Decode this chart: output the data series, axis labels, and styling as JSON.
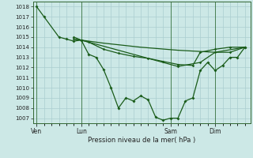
{
  "xlabel": "Pression niveau de la mer( hPa )",
  "ylim": [
    1006.5,
    1018.5
  ],
  "yticks": [
    1007,
    1008,
    1009,
    1010,
    1011,
    1012,
    1013,
    1014,
    1015,
    1016,
    1017,
    1018
  ],
  "xtick_labels": [
    "Ven",
    "Lun",
    "Sam",
    "Dim"
  ],
  "xtick_positions": [
    0,
    24,
    72,
    96
  ],
  "xlim": [
    -2,
    115
  ],
  "background_color": "#cce8e6",
  "grid_color": "#aaced0",
  "line_color": "#1a5c1a",
  "lines": [
    [
      0,
      1018,
      4,
      1017,
      12,
      1015,
      16,
      1014.8,
      20,
      1014.6,
      24,
      1014.7,
      28,
      1013.3,
      32,
      1013,
      36,
      1011.8,
      40,
      1010,
      44,
      1008,
      48,
      1009,
      52,
      1008.7,
      56,
      1009.2,
      60,
      1008.8,
      64,
      1007.1,
      68,
      1006.8,
      72,
      1007,
      76,
      1007,
      80,
      1008.7,
      84,
      1009,
      88,
      1011.7,
      92,
      1012.5,
      96,
      1011.7,
      100,
      1012.2,
      104,
      1013,
      108,
      1013,
      112,
      1014
    ],
    [
      20,
      1015,
      24,
      1014.7,
      28,
      1014.5,
      36,
      1013.8,
      44,
      1013.4,
      52,
      1013.1,
      60,
      1012.9,
      68,
      1012.6,
      76,
      1012.3,
      84,
      1012.2,
      88,
      1013.5,
      96,
      1013.8,
      104,
      1014.0,
      112,
      1014.0
    ],
    [
      20,
      1014.8,
      24,
      1014.7,
      36,
      1014.4,
      56,
      1014.0,
      76,
      1013.7,
      96,
      1013.5,
      112,
      1014.0
    ],
    [
      20,
      1014.8,
      24,
      1014.7,
      76,
      1012.1,
      88,
      1012.5,
      96,
      1013.5,
      104,
      1013.5,
      112,
      1014.0
    ]
  ],
  "figsize": [
    3.2,
    2.0
  ],
  "dpi": 100
}
